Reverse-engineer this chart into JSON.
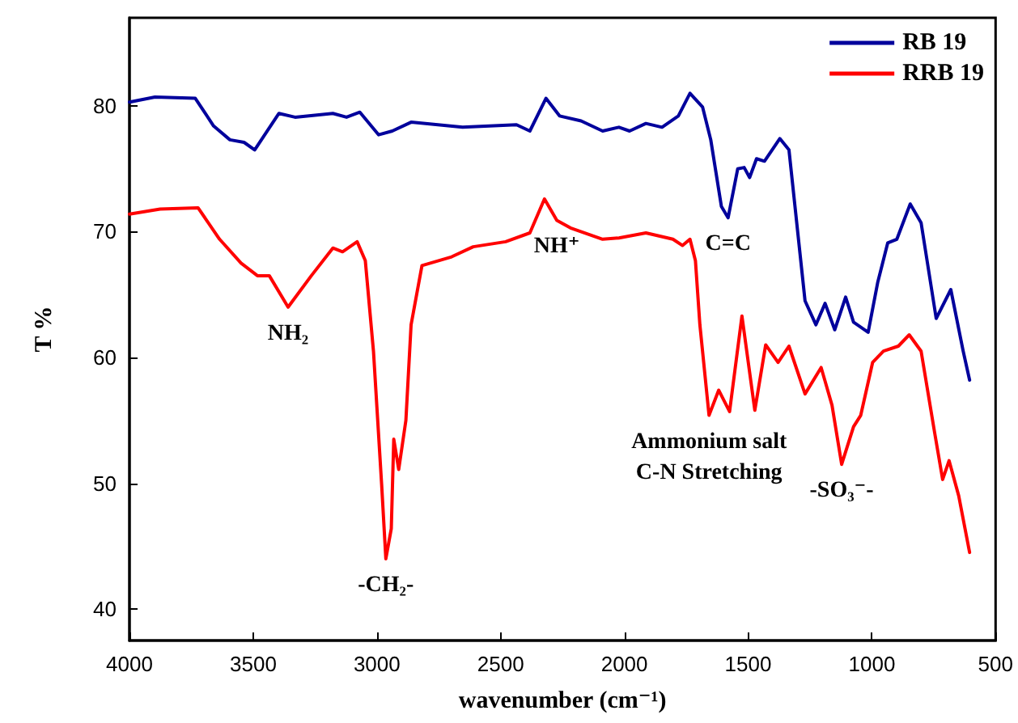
{
  "chart_data": {
    "type": "line",
    "xlabel": "wavenumber (cm⁻¹)",
    "ylabel": "T %",
    "xlim": [
      4000,
      500
    ],
    "xticks": [
      4000,
      3500,
      3000,
      2500,
      2000,
      1500,
      1000,
      500
    ],
    "ylim": [
      37.5,
      87
    ],
    "yticks": [
      40,
      50,
      60,
      70,
      80
    ],
    "grid": false,
    "legend": "top right",
    "marker": "none",
    "line_style": "solid",
    "series": [
      {
        "name": "RB 19",
        "color": "#00009c",
        "x": [
          4000,
          3897,
          3734,
          3660,
          3594,
          3537,
          3494,
          3396,
          3331,
          3178,
          3123,
          3069,
          2993,
          2938,
          2862,
          2654,
          2436,
          2382,
          2317,
          2262,
          2175,
          2088,
          2022,
          1979,
          1913,
          1848,
          1782,
          1735,
          1684,
          1651,
          1608,
          1581,
          1542,
          1516,
          1494,
          1466,
          1434,
          1372,
          1335,
          1270,
          1226,
          1189,
          1150,
          1106,
          1074,
          1015,
          976,
          936,
          899,
          845,
          801,
          740,
          681,
          631,
          605
        ],
        "values": [
          80.3,
          80.7,
          80.6,
          78.4,
          77.3,
          77.1,
          76.5,
          79.4,
          79.1,
          79.4,
          79.1,
          79.5,
          77.7,
          78.0,
          78.7,
          78.3,
          78.5,
          78.0,
          80.6,
          79.2,
          78.8,
          78.0,
          78.3,
          78.0,
          78.6,
          78.3,
          79.2,
          81.0,
          79.9,
          77.3,
          72.0,
          71.1,
          75.0,
          75.1,
          74.3,
          75.8,
          75.6,
          77.4,
          76.5,
          64.5,
          62.6,
          64.3,
          62.2,
          64.8,
          62.8,
          62.0,
          66.0,
          69.1,
          69.4,
          72.2,
          70.7,
          63.1,
          65.4,
          60.5,
          58.2
        ]
      },
      {
        "name": "RRB 19",
        "color": "#ff0000",
        "x": [
          4000,
          3876,
          3723,
          3636,
          3549,
          3483,
          3435,
          3359,
          3265,
          3178,
          3139,
          3080,
          3047,
          3014,
          2981,
          2964,
          2942,
          2932,
          2912,
          2883,
          2862,
          2818,
          2698,
          2611,
          2480,
          2382,
          2323,
          2273,
          2218,
          2088,
          2022,
          1913,
          1804,
          1765,
          1735,
          1713,
          1695,
          1658,
          1619,
          1575,
          1525,
          1473,
          1429,
          1379,
          1335,
          1270,
          1205,
          1161,
          1122,
          1074,
          1045,
          997,
          953,
          893,
          849,
          801,
          747,
          714,
          688,
          649,
          605
        ],
        "values": [
          71.4,
          71.8,
          71.9,
          69.4,
          67.5,
          66.5,
          66.5,
          64.0,
          66.5,
          68.7,
          68.4,
          69.2,
          67.7,
          60.5,
          49.9,
          44.0,
          46.4,
          53.5,
          51.1,
          55.0,
          62.6,
          67.3,
          68.0,
          68.8,
          69.2,
          69.9,
          72.6,
          70.9,
          70.3,
          69.4,
          69.5,
          69.9,
          69.4,
          68.9,
          69.4,
          67.7,
          62.6,
          55.4,
          57.4,
          55.7,
          63.3,
          55.8,
          61.0,
          59.6,
          60.9,
          57.1,
          59.2,
          56.2,
          51.5,
          54.5,
          55.4,
          59.6,
          60.5,
          60.9,
          61.8,
          60.5,
          54.1,
          50.3,
          51.8,
          49.0,
          44.5
        ]
      }
    ],
    "annotations": [
      {
        "text": "NH₂",
        "x": 3359,
        "y": 64.0
      },
      {
        "text": "-CH₂-",
        "x": 2964,
        "y": 44.0
      },
      {
        "text": "NH⁺",
        "x": 2273,
        "y": 70.9
      },
      {
        "text": "C=C",
        "x": 1581,
        "y": 71.1
      },
      {
        "text": "Ammonium salt\nC-N Stretching",
        "x": 1658,
        "y": 55.4
      },
      {
        "text": "-SO₃⁻-",
        "x": 1122,
        "y": 51.5
      }
    ]
  }
}
